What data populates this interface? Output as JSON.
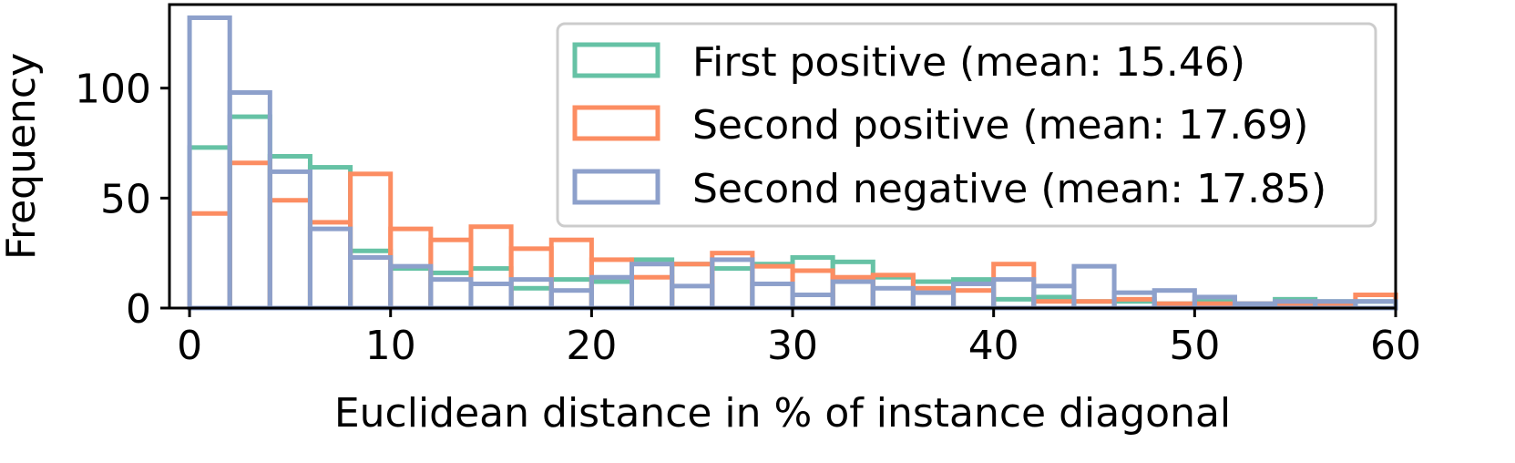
{
  "chart_data": {
    "type": "histogram",
    "bin_width": 2,
    "x": [
      0,
      2,
      4,
      6,
      8,
      10,
      12,
      14,
      16,
      18,
      20,
      22,
      24,
      26,
      28,
      30,
      32,
      34,
      36,
      38,
      40,
      42,
      44,
      46,
      48,
      50,
      52,
      54,
      56,
      58
    ],
    "xlim": [
      -1,
      60
    ],
    "ylim": [
      0,
      138
    ],
    "xticks": [
      0,
      10,
      20,
      30,
      40,
      50,
      60
    ],
    "yticks": [
      0,
      50,
      100
    ],
    "xlabel": "Euclidean distance in % of instance diagonal",
    "ylabel": "Frequency",
    "legend_position": "top-right",
    "series": [
      {
        "name": "First positive (mean: 15.46)",
        "color": "#66c2a5",
        "values": [
          73,
          87,
          69,
          64,
          26,
          18,
          16,
          18,
          9,
          13,
          12,
          22,
          20,
          18,
          20,
          23,
          21,
          14,
          12,
          13,
          4,
          5,
          3,
          3,
          2,
          3,
          2,
          4,
          3,
          3
        ]
      },
      {
        "name": "Second positive (mean: 17.69)",
        "color": "#fc8d62",
        "values": [
          43,
          66,
          49,
          39,
          61,
          36,
          31,
          37,
          27,
          31,
          22,
          14,
          20,
          25,
          19,
          17,
          14,
          15,
          9,
          8,
          20,
          3,
          3,
          4,
          2,
          2,
          2,
          2,
          2,
          6
        ]
      },
      {
        "name": "Second negative (mean: 17.85)",
        "color": "#8da0cb",
        "values": [
          132,
          98,
          62,
          36,
          23,
          19,
          13,
          11,
          13,
          8,
          14,
          20,
          10,
          22,
          11,
          6,
          12,
          9,
          7,
          11,
          13,
          10,
          19,
          7,
          8,
          5,
          2,
          3,
          3,
          3
        ]
      }
    ]
  }
}
